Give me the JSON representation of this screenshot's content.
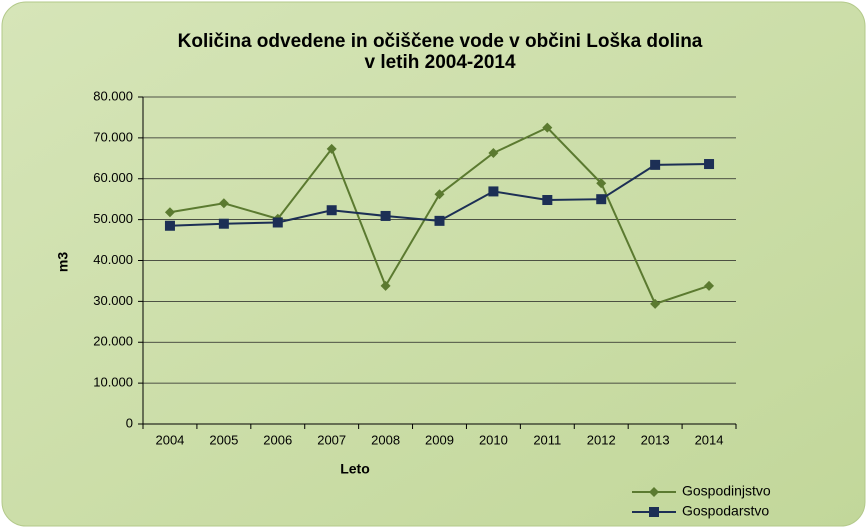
{
  "chart_data": {
    "type": "line",
    "title": [
      "Količina odvedene in očiščene vode v občini Loška dolina",
      "v letih 2004-2014"
    ],
    "x_label": "Leto",
    "y_label": "m3",
    "categories": [
      "2004",
      "2005",
      "2006",
      "2007",
      "2008",
      "2009",
      "2010",
      "2011",
      "2012",
      "2013",
      "2014"
    ],
    "series": [
      {
        "name": "Gospodinjstvo",
        "color": "#5b7a30",
        "marker": "diamond",
        "values": [
          51800,
          54000,
          50200,
          67300,
          33800,
          56200,
          66300,
          72500,
          58900,
          29400,
          33800
        ]
      },
      {
        "name": "Gospodarstvo",
        "color": "#1c2f55",
        "marker": "square",
        "values": [
          48500,
          49000,
          49300,
          52300,
          50900,
          49700,
          56900,
          54800,
          55000,
          63400,
          63600
        ]
      }
    ],
    "ylim": [
      0,
      80000
    ],
    "yticks": [
      0,
      {
        "value": 10000,
        "label": "10.000"
      },
      {
        "value": 20000,
        "label": "20.000"
      },
      {
        "value": 30000,
        "label": "30.000"
      },
      {
        "value": 40000,
        "label": "40.000"
      },
      {
        "value": 50000,
        "label": "50.000"
      },
      {
        "value": 60000,
        "label": "60.000"
      },
      {
        "value": 70000,
        "label": "70.000"
      },
      {
        "value": 80000,
        "label": "80.000"
      }
    ],
    "grid": true,
    "legend": "bottom-right"
  }
}
